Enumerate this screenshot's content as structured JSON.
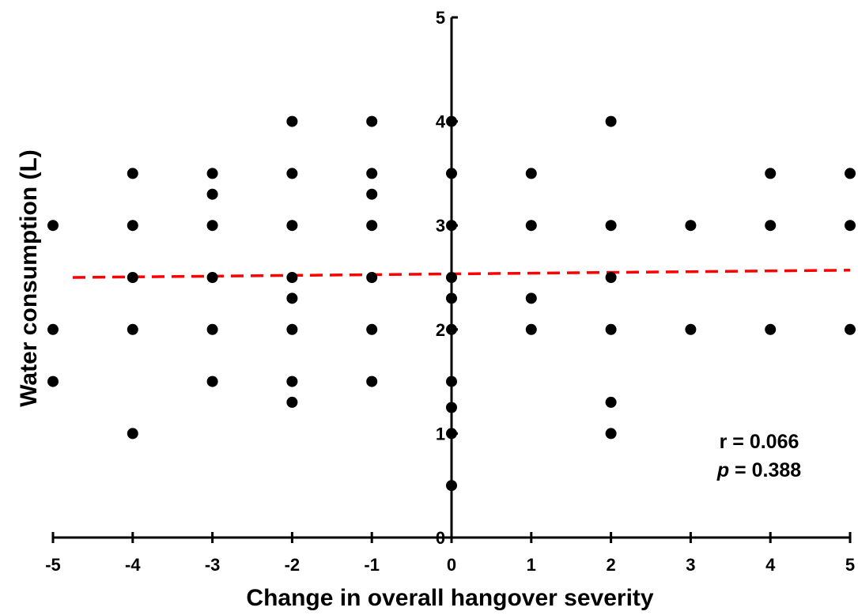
{
  "chart_data": {
    "type": "scatter",
    "xlabel": "Change in overall hangover severity",
    "ylabel": "Water consumption (L)",
    "xlim": [
      -5,
      5
    ],
    "ylim": [
      0,
      5
    ],
    "x_ticks": [
      "-5",
      "-4",
      "-3",
      "-2",
      "-1",
      "0",
      "1",
      "2",
      "3",
      "4",
      "5"
    ],
    "y_ticks": [
      "0",
      "1",
      "2",
      "3",
      "4",
      "5"
    ],
    "grid": false,
    "points": [
      {
        "x": -5,
        "y": 3
      },
      {
        "x": -5,
        "y": 2
      },
      {
        "x": -5,
        "y": 1.5
      },
      {
        "x": -4,
        "y": 3.5
      },
      {
        "x": -4,
        "y": 3
      },
      {
        "x": -4,
        "y": 2.5
      },
      {
        "x": -4,
        "y": 2
      },
      {
        "x": -4,
        "y": 1
      },
      {
        "x": -3,
        "y": 3.5
      },
      {
        "x": -3,
        "y": 3.3
      },
      {
        "x": -3,
        "y": 3
      },
      {
        "x": -3,
        "y": 2.5
      },
      {
        "x": -3,
        "y": 2
      },
      {
        "x": -3,
        "y": 1.5
      },
      {
        "x": -2,
        "y": 4
      },
      {
        "x": -2,
        "y": 3.5
      },
      {
        "x": -2,
        "y": 3
      },
      {
        "x": -2,
        "y": 2.5
      },
      {
        "x": -2,
        "y": 2.3
      },
      {
        "x": -2,
        "y": 2
      },
      {
        "x": -2,
        "y": 1.5
      },
      {
        "x": -2,
        "y": 1.3
      },
      {
        "x": -1,
        "y": 4
      },
      {
        "x": -1,
        "y": 3.5
      },
      {
        "x": -1,
        "y": 3.3
      },
      {
        "x": -1,
        "y": 3
      },
      {
        "x": -1,
        "y": 2.5
      },
      {
        "x": -1,
        "y": 2
      },
      {
        "x": -1,
        "y": 1.5
      },
      {
        "x": 0,
        "y": 4
      },
      {
        "x": 0,
        "y": 3.5
      },
      {
        "x": 0,
        "y": 3
      },
      {
        "x": 0,
        "y": 2.5
      },
      {
        "x": 0,
        "y": 2.3
      },
      {
        "x": 0,
        "y": 2
      },
      {
        "x": 0,
        "y": 1.5
      },
      {
        "x": 0,
        "y": 1.25
      },
      {
        "x": 0,
        "y": 1
      },
      {
        "x": 0,
        "y": 0.5
      },
      {
        "x": 1,
        "y": 3.5
      },
      {
        "x": 1,
        "y": 3
      },
      {
        "x": 1,
        "y": 2.3
      },
      {
        "x": 1,
        "y": 2
      },
      {
        "x": 2,
        "y": 4
      },
      {
        "x": 2,
        "y": 3
      },
      {
        "x": 2,
        "y": 2.5
      },
      {
        "x": 2,
        "y": 2
      },
      {
        "x": 2,
        "y": 1.3
      },
      {
        "x": 2,
        "y": 1
      },
      {
        "x": 3,
        "y": 3
      },
      {
        "x": 3,
        "y": 2
      },
      {
        "x": 4,
        "y": 3.5
      },
      {
        "x": 4,
        "y": 3
      },
      {
        "x": 4,
        "y": 2
      },
      {
        "x": 5,
        "y": 3.5
      },
      {
        "x": 5,
        "y": 3
      },
      {
        "x": 5,
        "y": 2
      }
    ],
    "trendline": {
      "x": [
        -5,
        5
      ],
      "y": [
        2.5,
        2.57
      ],
      "color": "#ff0000",
      "style": "dashed"
    },
    "point_color": "#000000",
    "annotations": [
      {
        "label": "r",
        "text": " = 0.066"
      },
      {
        "label": "p",
        "text": " = 0.388"
      }
    ]
  }
}
